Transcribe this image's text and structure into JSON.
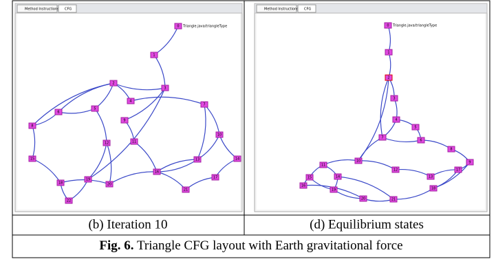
{
  "figure": {
    "panels": [
      {
        "tabs": [
          "Method Instructions",
          "CFG"
        ],
        "root_label": "Triangle.java/triangleType",
        "nodes": [
          "0",
          "1",
          "2",
          "3",
          "4",
          "5",
          "6",
          "7",
          "8",
          "9",
          "10",
          "11",
          "12",
          "13",
          "14",
          "15",
          "16",
          "17",
          "18",
          "19",
          "20",
          "21",
          "22"
        ],
        "caption": "(b) Iteration 10"
      },
      {
        "tabs": [
          "Method Instructions",
          "CFG"
        ],
        "root_label": "Triangle.java/triangleType",
        "nodes": [
          "0",
          "1",
          "2",
          "3",
          "4",
          "5",
          "6",
          "7",
          "8",
          "9",
          "10",
          "11",
          "12",
          "13",
          "14",
          "15",
          "16",
          "17",
          "18",
          "19",
          "20",
          "21"
        ],
        "caption": "(d) Equilibrium states"
      }
    ],
    "fig_label": "Fig. 6.",
    "fig_caption": "Triangle CFG layout with Earth gravitational force"
  }
}
